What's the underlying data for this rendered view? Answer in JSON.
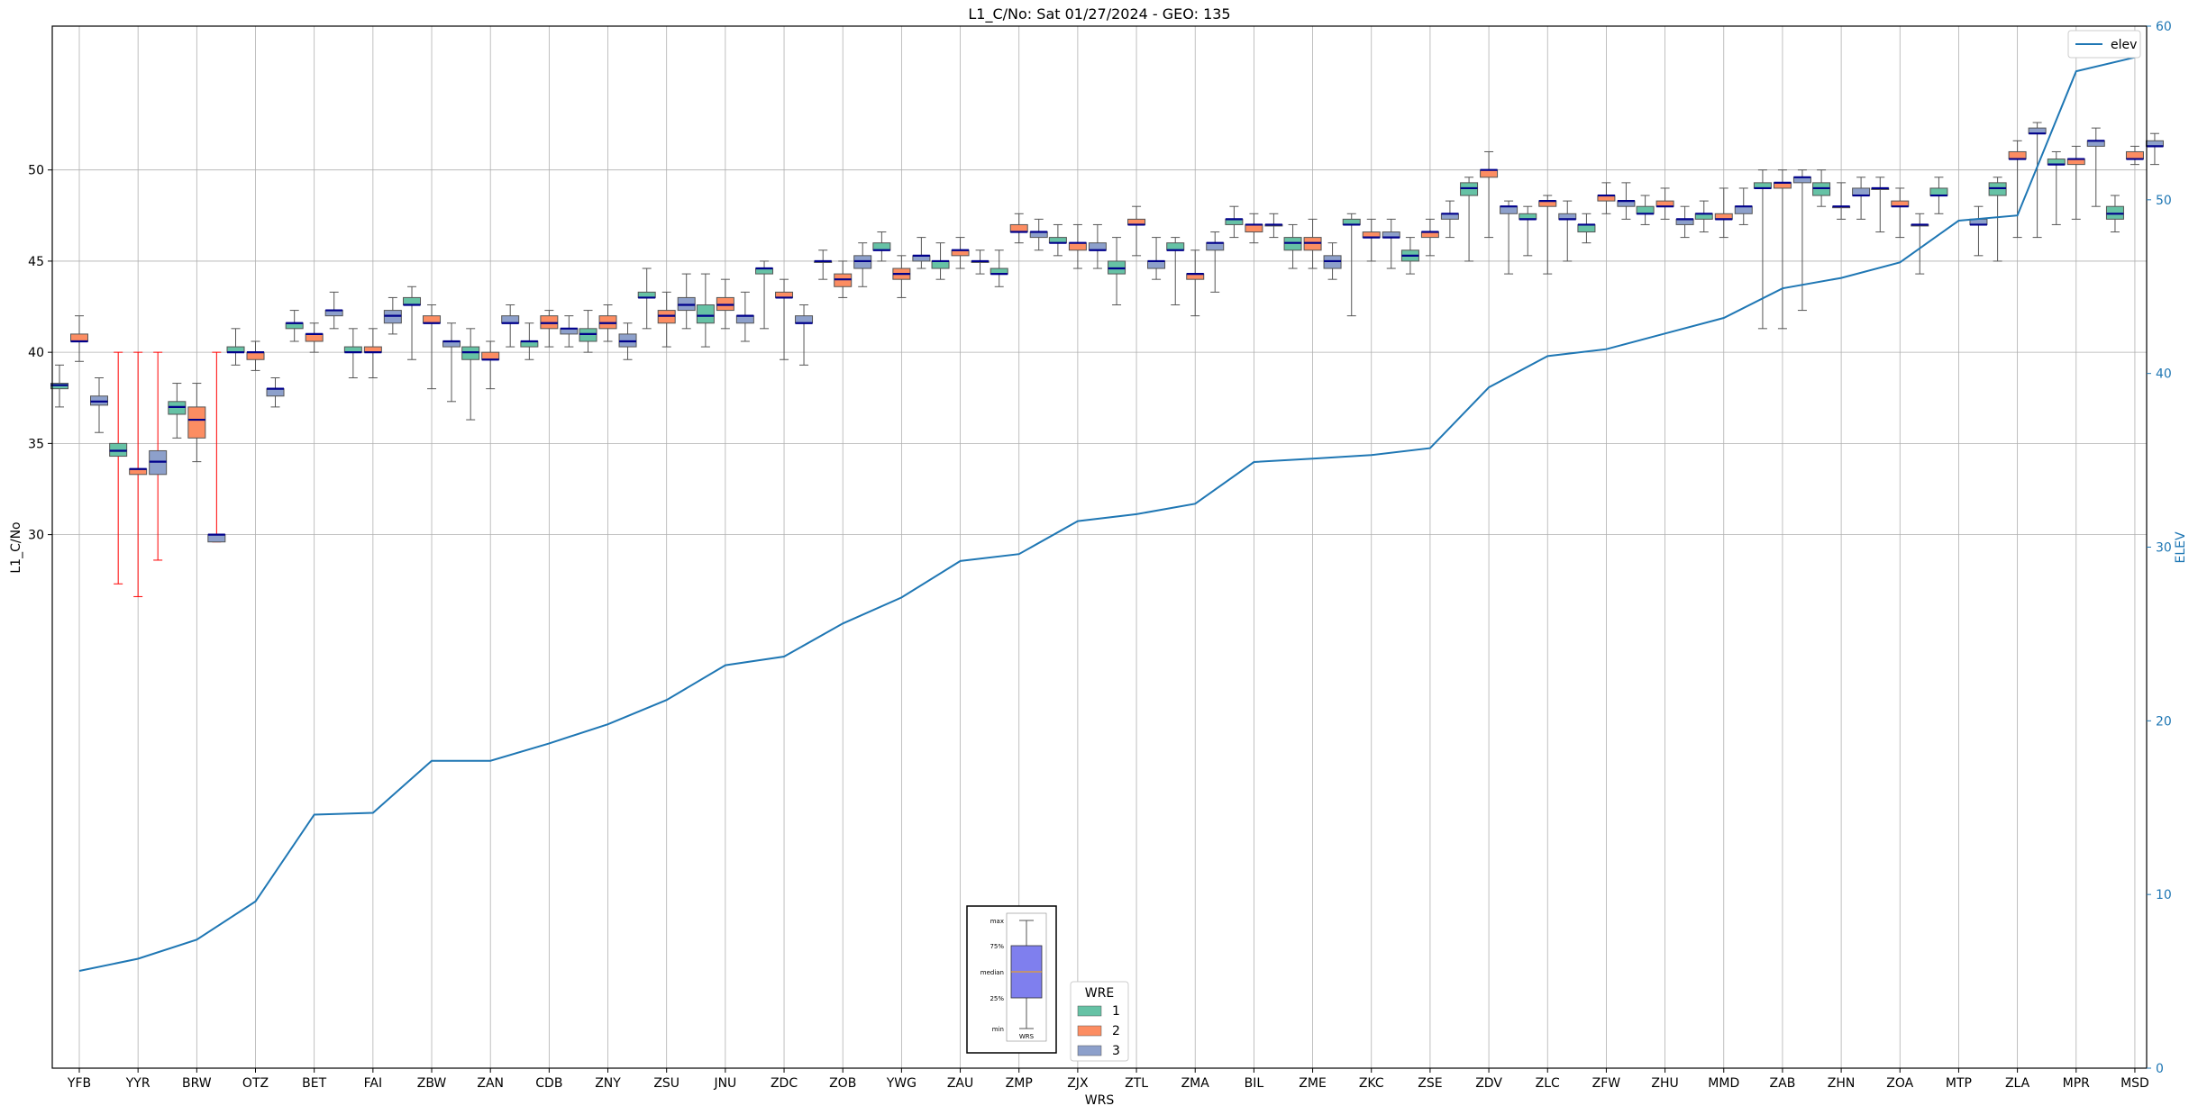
{
  "chart_data": {
    "type": "box",
    "title": "L1_C/No: Sat 01/27/2024 - GEO: 135",
    "xlabel": "WRS",
    "ylabel": "L1_C/No",
    "y2label": "ELEV",
    "ylim": [
      26.5,
      53.9
    ],
    "y2lim": [
      0,
      60
    ],
    "yticks": [
      30,
      35,
      40,
      45,
      50
    ],
    "y2ticks": [
      0,
      10,
      20,
      30,
      40,
      50,
      60
    ],
    "grid": true,
    "categories": [
      "YFB",
      "YYR",
      "BRW",
      "OTZ",
      "BET",
      "FAI",
      "ZBW",
      "ZAN",
      "CDB",
      "ZNY",
      "ZSU",
      "JNU",
      "ZDC",
      "ZOB",
      "YWG",
      "ZAU",
      "ZMP",
      "ZJX",
      "ZTL",
      "ZMA",
      "BIL",
      "ZME",
      "ZKC",
      "ZSE",
      "ZDV",
      "ZLC",
      "ZFW",
      "ZHU",
      "MMD",
      "ZAB",
      "ZHN",
      "ZOA",
      "MTP",
      "ZLA",
      "MPR",
      "MSD"
    ],
    "wre_colors": {
      "1": "#66c2a5",
      "2": "#fc8d62",
      "3": "#8da0cb"
    },
    "boxes": [
      {
        "site": "YFB",
        "wre": 1,
        "min": 37.0,
        "q1": 38.0,
        "med": 38.2,
        "q3": 38.3,
        "max": 39.3
      },
      {
        "site": "YFB",
        "wre": 2,
        "min": 39.5,
        "q1": 40.6,
        "med": 40.6,
        "q3": 41.0,
        "max": 42.0
      },
      {
        "site": "YFB",
        "wre": 3,
        "min": 35.6,
        "q1": 37.1,
        "med": 37.3,
        "q3": 37.6,
        "max": 38.6
      },
      {
        "site": "YYR",
        "wre": 1,
        "min": 27.3,
        "q1": 34.3,
        "med": 34.6,
        "q3": 35.0,
        "max": 40.0,
        "flag": true
      },
      {
        "site": "YYR",
        "wre": 2,
        "min": 26.6,
        "q1": 33.3,
        "med": 33.6,
        "q3": 33.6,
        "max": 40.0,
        "flag": true
      },
      {
        "site": "YYR",
        "wre": 3,
        "min": 28.6,
        "q1": 33.3,
        "med": 34.0,
        "q3": 34.6,
        "max": 40.0,
        "flag": true
      },
      {
        "site": "BRW",
        "wre": 1,
        "min": 35.3,
        "q1": 36.6,
        "med": 37.0,
        "q3": 37.3,
        "max": 38.3
      },
      {
        "site": "BRW",
        "wre": 2,
        "min": 34.0,
        "q1": 35.3,
        "med": 36.3,
        "q3": 37.0,
        "max": 38.3
      },
      {
        "site": "BRW",
        "wre": 3,
        "min": 29.6,
        "q1": 29.6,
        "med": 30.0,
        "q3": 30.0,
        "max": 40.0,
        "flag": true
      },
      {
        "site": "OTZ",
        "wre": 1,
        "min": 39.3,
        "q1": 40.0,
        "med": 40.0,
        "q3": 40.3,
        "max": 41.3
      },
      {
        "site": "OTZ",
        "wre": 2,
        "min": 39.0,
        "q1": 39.6,
        "med": 40.0,
        "q3": 40.0,
        "max": 40.6
      },
      {
        "site": "OTZ",
        "wre": 3,
        "min": 37.0,
        "q1": 37.6,
        "med": 38.0,
        "q3": 38.0,
        "max": 38.6
      },
      {
        "site": "BET",
        "wre": 1,
        "min": 40.6,
        "q1": 41.3,
        "med": 41.6,
        "q3": 41.6,
        "max": 42.3
      },
      {
        "site": "BET",
        "wre": 2,
        "min": 40.0,
        "q1": 40.6,
        "med": 41.0,
        "q3": 41.0,
        "max": 41.6
      },
      {
        "site": "BET",
        "wre": 3,
        "min": 41.3,
        "q1": 42.0,
        "med": 42.3,
        "q3": 42.3,
        "max": 43.3
      },
      {
        "site": "FAI",
        "wre": 1,
        "min": 38.6,
        "q1": 40.0,
        "med": 40.0,
        "q3": 40.3,
        "max": 41.3
      },
      {
        "site": "FAI",
        "wre": 2,
        "min": 38.6,
        "q1": 40.0,
        "med": 40.0,
        "q3": 40.3,
        "max": 41.3
      },
      {
        "site": "FAI",
        "wre": 3,
        "min": 41.0,
        "q1": 41.6,
        "med": 42.0,
        "q3": 42.3,
        "max": 43.0
      },
      {
        "site": "ZBW",
        "wre": 1,
        "min": 39.6,
        "q1": 42.6,
        "med": 42.6,
        "q3": 43.0,
        "max": 43.6
      },
      {
        "site": "ZBW",
        "wre": 2,
        "min": 38.0,
        "q1": 41.6,
        "med": 41.6,
        "q3": 42.0,
        "max": 42.6
      },
      {
        "site": "ZBW",
        "wre": 3,
        "min": 37.3,
        "q1": 40.3,
        "med": 40.6,
        "q3": 40.6,
        "max": 41.6
      },
      {
        "site": "ZAN",
        "wre": 1,
        "min": 36.3,
        "q1": 39.6,
        "med": 40.0,
        "q3": 40.3,
        "max": 41.3
      },
      {
        "site": "ZAN",
        "wre": 2,
        "min": 38.0,
        "q1": 39.6,
        "med": 39.6,
        "q3": 40.0,
        "max": 40.6
      },
      {
        "site": "ZAN",
        "wre": 3,
        "min": 40.3,
        "q1": 41.6,
        "med": 41.6,
        "q3": 42.0,
        "max": 42.6
      },
      {
        "site": "CDB",
        "wre": 1,
        "min": 39.6,
        "q1": 40.3,
        "med": 40.6,
        "q3": 40.6,
        "max": 41.6
      },
      {
        "site": "CDB",
        "wre": 2,
        "min": 40.3,
        "q1": 41.3,
        "med": 41.6,
        "q3": 42.0,
        "max": 42.3
      },
      {
        "site": "CDB",
        "wre": 3,
        "min": 40.3,
        "q1": 41.0,
        "med": 41.3,
        "q3": 41.3,
        "max": 42.0
      },
      {
        "site": "ZNY",
        "wre": 1,
        "min": 40.0,
        "q1": 40.6,
        "med": 41.0,
        "q3": 41.3,
        "max": 42.3
      },
      {
        "site": "ZNY",
        "wre": 2,
        "min": 40.6,
        "q1": 41.3,
        "med": 41.6,
        "q3": 42.0,
        "max": 42.6
      },
      {
        "site": "ZNY",
        "wre": 3,
        "min": 39.6,
        "q1": 40.3,
        "med": 40.6,
        "q3": 41.0,
        "max": 41.6
      },
      {
        "site": "ZSU",
        "wre": 1,
        "min": 41.3,
        "q1": 43.0,
        "med": 43.0,
        "q3": 43.3,
        "max": 44.6
      },
      {
        "site": "ZSU",
        "wre": 2,
        "min": 40.3,
        "q1": 41.6,
        "med": 42.0,
        "q3": 42.3,
        "max": 43.3
      },
      {
        "site": "ZSU",
        "wre": 3,
        "min": 41.3,
        "q1": 42.3,
        "med": 42.6,
        "q3": 43.0,
        "max": 44.3
      },
      {
        "site": "JNU",
        "wre": 1,
        "min": 40.3,
        "q1": 41.6,
        "med": 42.0,
        "q3": 42.6,
        "max": 44.3
      },
      {
        "site": "JNU",
        "wre": 2,
        "min": 41.3,
        "q1": 42.3,
        "med": 42.6,
        "q3": 43.0,
        "max": 44.0
      },
      {
        "site": "JNU",
        "wre": 3,
        "min": 40.6,
        "q1": 41.6,
        "med": 42.0,
        "q3": 42.0,
        "max": 43.3
      },
      {
        "site": "ZDC",
        "wre": 1,
        "min": 41.3,
        "q1": 44.3,
        "med": 44.6,
        "q3": 44.6,
        "max": 45.0
      },
      {
        "site": "ZDC",
        "wre": 2,
        "min": 39.6,
        "q1": 43.0,
        "med": 43.0,
        "q3": 43.3,
        "max": 44.0
      },
      {
        "site": "ZDC",
        "wre": 3,
        "min": 39.3,
        "q1": 41.6,
        "med": 41.6,
        "q3": 42.0,
        "max": 42.6
      },
      {
        "site": "ZOB",
        "wre": 1,
        "min": 44.0,
        "q1": 45.0,
        "med": 45.0,
        "q3": 45.0,
        "max": 45.6
      },
      {
        "site": "ZOB",
        "wre": 2,
        "min": 43.0,
        "q1": 43.6,
        "med": 44.0,
        "q3": 44.3,
        "max": 45.0
      },
      {
        "site": "ZOB",
        "wre": 3,
        "min": 43.6,
        "q1": 44.6,
        "med": 45.0,
        "q3": 45.3,
        "max": 46.0
      },
      {
        "site": "YWG",
        "wre": 1,
        "min": 45.0,
        "q1": 45.6,
        "med": 45.6,
        "q3": 46.0,
        "max": 46.6
      },
      {
        "site": "YWG",
        "wre": 2,
        "min": 43.0,
        "q1": 44.0,
        "med": 44.3,
        "q3": 44.6,
        "max": 45.3
      },
      {
        "site": "YWG",
        "wre": 3,
        "min": 44.6,
        "q1": 45.0,
        "med": 45.3,
        "q3": 45.3,
        "max": 46.3
      },
      {
        "site": "ZAU",
        "wre": 1,
        "min": 44.0,
        "q1": 44.6,
        "med": 45.0,
        "q3": 45.0,
        "max": 46.0
      },
      {
        "site": "ZAU",
        "wre": 2,
        "min": 44.6,
        "q1": 45.3,
        "med": 45.6,
        "q3": 45.6,
        "max": 46.3
      },
      {
        "site": "ZAU",
        "wre": 3,
        "min": 44.3,
        "q1": 45.0,
        "med": 45.0,
        "q3": 45.0,
        "max": 45.6
      },
      {
        "site": "ZMP",
        "wre": 1,
        "min": 43.6,
        "q1": 44.3,
        "med": 44.3,
        "q3": 44.6,
        "max": 45.6
      },
      {
        "site": "ZMP",
        "wre": 2,
        "min": 46.0,
        "q1": 46.6,
        "med": 46.6,
        "q3": 47.0,
        "max": 47.6
      },
      {
        "site": "ZMP",
        "wre": 3,
        "min": 45.6,
        "q1": 46.3,
        "med": 46.6,
        "q3": 46.6,
        "max": 47.3
      },
      {
        "site": "ZJX",
        "wre": 1,
        "min": 45.3,
        "q1": 46.0,
        "med": 46.0,
        "q3": 46.3,
        "max": 47.0
      },
      {
        "site": "ZJX",
        "wre": 2,
        "min": 44.6,
        "q1": 45.6,
        "med": 46.0,
        "q3": 46.0,
        "max": 47.0
      },
      {
        "site": "ZJX",
        "wre": 3,
        "min": 44.6,
        "q1": 45.6,
        "med": 45.6,
        "q3": 46.0,
        "max": 47.0
      },
      {
        "site": "ZTL",
        "wre": 1,
        "min": 42.6,
        "q1": 44.3,
        "med": 44.6,
        "q3": 45.0,
        "max": 46.3
      },
      {
        "site": "ZTL",
        "wre": 2,
        "min": 45.3,
        "q1": 47.0,
        "med": 47.0,
        "q3": 47.3,
        "max": 48.0
      },
      {
        "site": "ZTL",
        "wre": 3,
        "min": 44.0,
        "q1": 44.6,
        "med": 45.0,
        "q3": 45.0,
        "max": 46.3
      },
      {
        "site": "ZMA",
        "wre": 1,
        "min": 42.6,
        "q1": 45.6,
        "med": 45.6,
        "q3": 46.0,
        "max": 46.3
      },
      {
        "site": "ZMA",
        "wre": 2,
        "min": 42.0,
        "q1": 44.0,
        "med": 44.3,
        "q3": 44.3,
        "max": 45.6
      },
      {
        "site": "ZMA",
        "wre": 3,
        "min": 43.3,
        "q1": 45.6,
        "med": 46.0,
        "q3": 46.0,
        "max": 46.6
      },
      {
        "site": "BIL",
        "wre": 1,
        "min": 46.3,
        "q1": 47.0,
        "med": 47.3,
        "q3": 47.3,
        "max": 48.0
      },
      {
        "site": "BIL",
        "wre": 2,
        "min": 46.0,
        "q1": 46.6,
        "med": 47.0,
        "q3": 47.0,
        "max": 47.6
      },
      {
        "site": "BIL",
        "wre": 3,
        "min": 46.3,
        "q1": 47.0,
        "med": 47.0,
        "q3": 47.0,
        "max": 47.6
      },
      {
        "site": "ZME",
        "wre": 1,
        "min": 44.6,
        "q1": 45.6,
        "med": 46.0,
        "q3": 46.3,
        "max": 47.0
      },
      {
        "site": "ZME",
        "wre": 2,
        "min": 44.6,
        "q1": 45.6,
        "med": 46.0,
        "q3": 46.3,
        "max": 47.3
      },
      {
        "site": "ZME",
        "wre": 3,
        "min": 44.0,
        "q1": 44.6,
        "med": 45.0,
        "q3": 45.3,
        "max": 46.0
      },
      {
        "site": "ZKC",
        "wre": 1,
        "min": 42.0,
        "q1": 47.0,
        "med": 47.0,
        "q3": 47.3,
        "max": 47.6
      },
      {
        "site": "ZKC",
        "wre": 2,
        "min": 45.0,
        "q1": 46.3,
        "med": 46.3,
        "q3": 46.6,
        "max": 47.3
      },
      {
        "site": "ZKC",
        "wre": 3,
        "min": 44.6,
        "q1": 46.3,
        "med": 46.3,
        "q3": 46.6,
        "max": 47.3
      },
      {
        "site": "ZSE",
        "wre": 1,
        "min": 44.3,
        "q1": 45.0,
        "med": 45.3,
        "q3": 45.6,
        "max": 46.3
      },
      {
        "site": "ZSE",
        "wre": 2,
        "min": 45.3,
        "q1": 46.3,
        "med": 46.6,
        "q3": 46.6,
        "max": 47.3
      },
      {
        "site": "ZSE",
        "wre": 3,
        "min": 46.3,
        "q1": 47.3,
        "med": 47.6,
        "q3": 47.6,
        "max": 48.3
      },
      {
        "site": "ZDV",
        "wre": 1,
        "min": 45.0,
        "q1": 48.6,
        "med": 49.0,
        "q3": 49.3,
        "max": 49.6
      },
      {
        "site": "ZDV",
        "wre": 2,
        "min": 46.3,
        "q1": 49.6,
        "med": 50.0,
        "q3": 50.0,
        "max": 51.0
      },
      {
        "site": "ZDV",
        "wre": 3,
        "min": 44.3,
        "q1": 47.6,
        "med": 48.0,
        "q3": 48.0,
        "max": 48.3
      },
      {
        "site": "ZLC",
        "wre": 1,
        "min": 45.3,
        "q1": 47.3,
        "med": 47.3,
        "q3": 47.6,
        "max": 48.0
      },
      {
        "site": "ZLC",
        "wre": 2,
        "min": 44.3,
        "q1": 48.0,
        "med": 48.3,
        "q3": 48.3,
        "max": 48.6
      },
      {
        "site": "ZLC",
        "wre": 3,
        "min": 45.0,
        "q1": 47.3,
        "med": 47.3,
        "q3": 47.6,
        "max": 48.3
      },
      {
        "site": "ZFW",
        "wre": 1,
        "min": 46.0,
        "q1": 46.6,
        "med": 47.0,
        "q3": 47.0,
        "max": 47.6
      },
      {
        "site": "ZFW",
        "wre": 2,
        "min": 47.6,
        "q1": 48.3,
        "med": 48.6,
        "q3": 48.6,
        "max": 49.3
      },
      {
        "site": "ZFW",
        "wre": 3,
        "min": 47.3,
        "q1": 48.0,
        "med": 48.3,
        "q3": 48.3,
        "max": 49.3
      },
      {
        "site": "ZHU",
        "wre": 1,
        "min": 47.0,
        "q1": 47.6,
        "med": 47.6,
        "q3": 48.0,
        "max": 48.6
      },
      {
        "site": "ZHU",
        "wre": 2,
        "min": 47.3,
        "q1": 48.0,
        "med": 48.0,
        "q3": 48.3,
        "max": 49.0
      },
      {
        "site": "ZHU",
        "wre": 3,
        "min": 46.3,
        "q1": 47.0,
        "med": 47.3,
        "q3": 47.3,
        "max": 48.0
      },
      {
        "site": "MMD",
        "wre": 1,
        "min": 46.6,
        "q1": 47.3,
        "med": 47.6,
        "q3": 47.6,
        "max": 48.3
      },
      {
        "site": "MMD",
        "wre": 2,
        "min": 46.3,
        "q1": 47.3,
        "med": 47.3,
        "q3": 47.6,
        "max": 49.0
      },
      {
        "site": "MMD",
        "wre": 3,
        "min": 47.0,
        "q1": 47.6,
        "med": 48.0,
        "q3": 48.0,
        "max": 49.0
      },
      {
        "site": "ZAB",
        "wre": 1,
        "min": 41.3,
        "q1": 49.0,
        "med": 49.0,
        "q3": 49.3,
        "max": 50.0
      },
      {
        "site": "ZAB",
        "wre": 2,
        "min": 41.3,
        "q1": 49.0,
        "med": 49.3,
        "q3": 49.3,
        "max": 50.0
      },
      {
        "site": "ZAB",
        "wre": 3,
        "min": 42.3,
        "q1": 49.3,
        "med": 49.6,
        "q3": 49.6,
        "max": 50.0
      },
      {
        "site": "ZHN",
        "wre": 1,
        "min": 48.0,
        "q1": 48.6,
        "med": 49.0,
        "q3": 49.3,
        "max": 50.0
      },
      {
        "site": "ZHN",
        "wre": 2,
        "min": 47.3,
        "q1": 48.0,
        "med": 48.0,
        "q3": 48.0,
        "max": 49.3
      },
      {
        "site": "ZHN",
        "wre": 3,
        "min": 47.3,
        "q1": 48.6,
        "med": 48.6,
        "q3": 49.0,
        "max": 49.6
      },
      {
        "site": "ZOA",
        "wre": 1,
        "min": 46.6,
        "q1": 49.0,
        "med": 49.0,
        "q3": 49.0,
        "max": 49.6
      },
      {
        "site": "ZOA",
        "wre": 2,
        "min": 46.3,
        "q1": 48.0,
        "med": 48.0,
        "q3": 48.3,
        "max": 49.0
      },
      {
        "site": "ZOA",
        "wre": 3,
        "min": 44.3,
        "q1": 47.0,
        "med": 47.0,
        "q3": 47.0,
        "max": 47.6
      },
      {
        "site": "MTP",
        "wre": 1,
        "min": 47.6,
        "q1": 48.6,
        "med": 48.6,
        "q3": 49.0,
        "max": 49.6
      },
      {
        "site": "MTP",
        "wre": 3,
        "min": 45.3,
        "q1": 47.0,
        "med": 47.0,
        "q3": 47.3,
        "max": 48.0
      },
      {
        "site": "ZLA",
        "wre": 1,
        "min": 45.0,
        "q1": 48.6,
        "med": 49.0,
        "q3": 49.3,
        "max": 49.6
      },
      {
        "site": "ZLA",
        "wre": 2,
        "min": 46.3,
        "q1": 50.6,
        "med": 50.6,
        "q3": 51.0,
        "max": 51.6
      },
      {
        "site": "ZLA",
        "wre": 3,
        "min": 46.3,
        "q1": 52.0,
        "med": 52.0,
        "q3": 52.3,
        "max": 52.6
      },
      {
        "site": "MPR",
        "wre": 1,
        "min": 47.0,
        "q1": 50.3,
        "med": 50.3,
        "q3": 50.6,
        "max": 51.0
      },
      {
        "site": "MPR",
        "wre": 2,
        "min": 47.3,
        "q1": 50.3,
        "med": 50.6,
        "q3": 50.6,
        "max": 51.3
      },
      {
        "site": "MPR",
        "wre": 3,
        "min": 48.0,
        "q1": 51.3,
        "med": 51.6,
        "q3": 51.6,
        "max": 52.3
      },
      {
        "site": "MSD",
        "wre": 1,
        "min": 46.6,
        "q1": 47.3,
        "med": 47.6,
        "q3": 48.0,
        "max": 48.6
      },
      {
        "site": "MSD",
        "wre": 2,
        "min": 50.3,
        "q1": 50.6,
        "med": 50.6,
        "q3": 51.0,
        "max": 51.3
      },
      {
        "site": "MSD",
        "wre": 3,
        "min": 50.3,
        "q1": 51.3,
        "med": 51.3,
        "q3": 51.6,
        "max": 52.0
      }
    ],
    "elev_series": {
      "name": "elev",
      "color": "#1f77b4",
      "values": [
        5.6,
        6.3,
        7.4,
        9.6,
        14.6,
        14.7,
        17.7,
        17.7,
        18.7,
        19.8,
        21.2,
        23.2,
        23.7,
        25.6,
        27.1,
        29.2,
        29.6,
        31.5,
        31.9,
        32.5,
        34.9,
        35.1,
        35.3,
        35.7,
        39.2,
        41.0,
        41.4,
        42.3,
        43.2,
        44.9,
        45.5,
        46.4,
        48.8,
        49.1,
        57.4,
        58.2
      ]
    },
    "legend_elev": {
      "label": "elev",
      "position": "top-right"
    },
    "legend_wre": {
      "title": "WRE",
      "labels": [
        "1",
        "2",
        "3"
      ],
      "position": "lower-center"
    },
    "key_inset": {
      "labels": [
        "max",
        "75%",
        "median",
        "25%",
        "min"
      ],
      "xlabel": "WRS"
    }
  }
}
